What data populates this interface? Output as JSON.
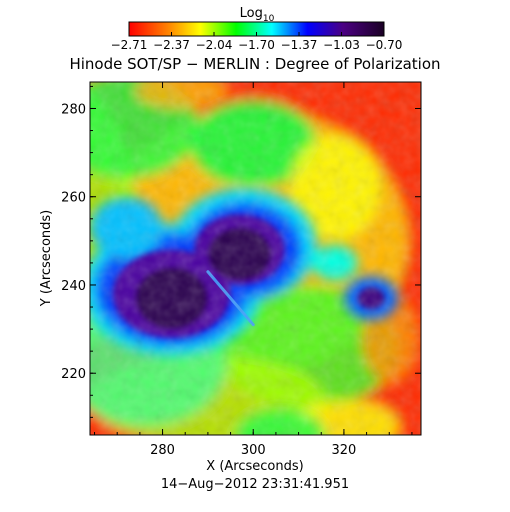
{
  "chart_data": {
    "type": "heatmap",
    "title": "Hinode SOT/SP − MERLIN : Degree of Polarization",
    "colorbar": {
      "label_base": "Log",
      "label_sub": "10",
      "tick_labels": [
        "−2.71",
        "−2.37",
        "−2.04",
        "−1.70",
        "−1.37",
        "−1.03",
        "−0.70"
      ],
      "range": [
        -2.71,
        -0.7
      ],
      "colormap": "rainbow (red → yellow → green → blue → purple → black)",
      "colors": [
        "#ff0000",
        "#ff8000",
        "#ffff00",
        "#00ff00",
        "#00ffff",
        "#0000ff",
        "#4b0082",
        "#1a0024"
      ]
    },
    "xlabel": "X (Arcseconds)",
    "ylabel": "Y (Arcseconds)",
    "xlim": [
      264,
      337
    ],
    "ylim": [
      206,
      286
    ],
    "x_ticks": [
      280,
      300,
      320
    ],
    "y_ticks": [
      220,
      240,
      260,
      280
    ],
    "timestamp": "14−Aug−2012 23:31:41.951",
    "features": {
      "umbra_centers": [
        [
          282,
          238
        ],
        [
          297,
          248
        ]
      ],
      "pore_center": [
        326,
        237
      ],
      "bright_streak": [
        [
          290,
          243
        ],
        [
          300,
          231
        ]
      ]
    }
  }
}
